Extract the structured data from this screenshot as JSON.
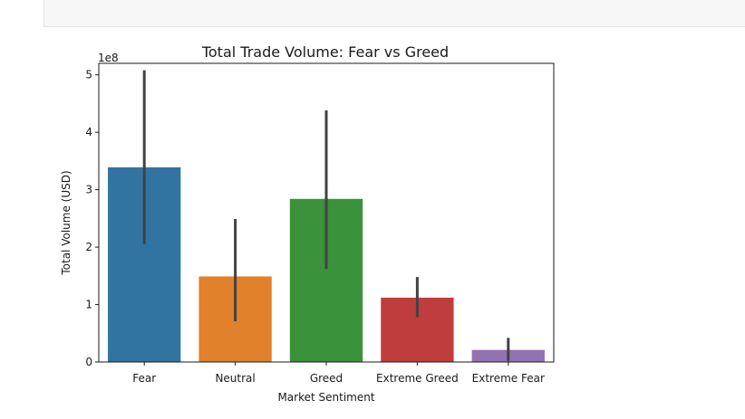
{
  "chart_data": {
    "type": "bar",
    "title": "Total Trade Volume: Fear vs Greed",
    "xlabel": "Market Sentiment",
    "ylabel": "Total Volume (USD)",
    "y_offset_label": "1e8",
    "y_scale": 100000000,
    "ylim": [
      0,
      5.2
    ],
    "yticks": [
      0,
      1,
      2,
      3,
      4,
      5
    ],
    "categories": [
      "Fear",
      "Neutral",
      "Greed",
      "Extreme Greed",
      "Extreme Fear"
    ],
    "values": [
      3.39,
      1.49,
      2.84,
      1.12,
      0.21
    ],
    "error_low": [
      2.05,
      0.71,
      1.62,
      0.78,
      0.02
    ],
    "error_high": [
      5.08,
      2.49,
      4.38,
      1.48,
      0.42
    ],
    "colors": [
      "#3274a1",
      "#e1812c",
      "#3a923a",
      "#c03d3e",
      "#9372b2"
    ],
    "errorbar_color": "#424242",
    "grid": false,
    "legend": "none"
  }
}
